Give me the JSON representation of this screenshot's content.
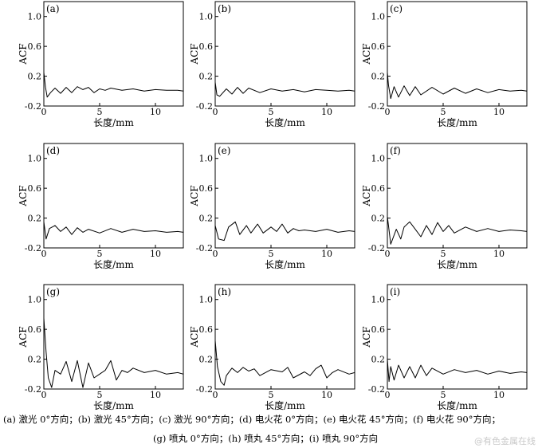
{
  "caption": {
    "line1": "(a) 激光 0°方向；(b) 激光 45°方向；(c) 激光 90°方向；(d) 电火花 0°方向；(e) 电火花 45°方向；(f) 电火花 90°方向；",
    "line2": "(g) 喷丸 0°方向；(h) 喷丸 45°方向；(i) 喷丸 90°方向"
  },
  "watermark": "@有色金属在线",
  "chart_data": [
    {
      "type": "line",
      "panel_label": "(a)",
      "xlabel": "长度/mm",
      "ylabel": "ACF",
      "xlim": [
        0,
        12.5
      ],
      "ylim": [
        -0.2,
        1.2
      ],
      "xticks": [
        0,
        5,
        10
      ],
      "yticks": [
        -0.2,
        0.2,
        0.6,
        1.0
      ],
      "ytick_labels": [
        "-0.2",
        "0.2",
        "0.6",
        "1.0"
      ],
      "x": [
        0,
        0.15,
        0.3,
        0.6,
        1,
        1.5,
        2,
        2.5,
        3,
        3.5,
        4,
        4.5,
        5,
        5.5,
        6,
        7,
        8,
        9,
        10,
        11,
        12,
        12.5
      ],
      "y": [
        0.25,
        0.05,
        -0.08,
        -0.02,
        0.04,
        -0.03,
        0.05,
        -0.02,
        0.06,
        0.02,
        0.05,
        -0.02,
        0.03,
        0.01,
        0.04,
        0.01,
        0.03,
        0.0,
        0.02,
        0.01,
        0.01,
        0.0
      ]
    },
    {
      "type": "line",
      "panel_label": "(b)",
      "xlabel": "长度/mm",
      "ylabel": "ACF",
      "xlim": [
        0,
        12.5
      ],
      "ylim": [
        -0.2,
        1.2
      ],
      "xticks": [
        0,
        5,
        10
      ],
      "yticks": [
        -0.2,
        0.2,
        0.6,
        1.0
      ],
      "ytick_labels": [
        "-0.2",
        "0.2",
        "0.6",
        "1.0"
      ],
      "x": [
        0,
        0.15,
        0.4,
        1,
        1.5,
        2,
        2.5,
        3,
        4,
        5,
        6,
        7,
        8,
        9,
        10,
        11,
        12,
        12.5
      ],
      "y": [
        0.12,
        -0.05,
        -0.07,
        0.03,
        -0.04,
        0.05,
        -0.03,
        0.04,
        -0.02,
        0.03,
        0.0,
        0.02,
        -0.01,
        0.02,
        0.01,
        0.0,
        0.01,
        0.0
      ]
    },
    {
      "type": "line",
      "panel_label": "(c)",
      "xlabel": "长度/mm",
      "ylabel": "ACF",
      "xlim": [
        0,
        12.5
      ],
      "ylim": [
        -0.2,
        1.2
      ],
      "xticks": [
        0,
        5,
        10
      ],
      "yticks": [
        -0.2,
        0.2,
        0.6,
        1.0
      ],
      "ytick_labels": [
        "-0.2",
        "0.2",
        "0.6",
        "1.0"
      ],
      "x": [
        0,
        0.1,
        0.3,
        0.6,
        1,
        1.5,
        2,
        2.5,
        3,
        4,
        5,
        6,
        7,
        8,
        9,
        10,
        11,
        12,
        12.5
      ],
      "y": [
        0.25,
        0.08,
        -0.1,
        0.06,
        -0.08,
        0.07,
        -0.06,
        0.06,
        -0.05,
        0.05,
        -0.04,
        0.04,
        -0.03,
        0.03,
        -0.02,
        0.02,
        0.0,
        0.01,
        0.0
      ]
    },
    {
      "type": "line",
      "panel_label": "(d)",
      "xlabel": "长度/mm",
      "ylabel": "ACF",
      "xlim": [
        0,
        12.5
      ],
      "ylim": [
        -0.2,
        1.2
      ],
      "xticks": [
        0,
        5,
        10
      ],
      "yticks": [
        -0.2,
        0.2,
        0.6,
        1.0
      ],
      "ytick_labels": [
        "-0.2",
        "0.2",
        "0.6",
        "1.0"
      ],
      "x": [
        0,
        0.2,
        0.5,
        1,
        1.5,
        2,
        2.5,
        3,
        3.5,
        4,
        5,
        6,
        7,
        8,
        9,
        10,
        11,
        12,
        12.5
      ],
      "y": [
        0.15,
        -0.08,
        0.06,
        0.1,
        0.02,
        0.08,
        -0.02,
        0.07,
        0.01,
        0.05,
        0.0,
        0.06,
        0.01,
        0.05,
        0.02,
        0.03,
        0.01,
        0.02,
        0.01
      ]
    },
    {
      "type": "line",
      "panel_label": "(e)",
      "xlabel": "长度/mm",
      "ylabel": "ACF",
      "xlim": [
        0,
        12.5
      ],
      "ylim": [
        -0.2,
        1.2
      ],
      "xticks": [
        0,
        5,
        10
      ],
      "yticks": [
        -0.2,
        0.2,
        0.6,
        1.0
      ],
      "ytick_labels": [
        "-0.2",
        "0.2",
        "0.6",
        "1.0"
      ],
      "x": [
        0,
        0.3,
        0.8,
        1.2,
        1.8,
        2.2,
        2.8,
        3.2,
        3.8,
        4.3,
        5,
        5.5,
        6,
        6.5,
        7,
        7.5,
        8,
        9,
        10,
        11,
        12,
        12.5
      ],
      "y": [
        0.1,
        -0.08,
        -0.1,
        0.08,
        0.15,
        -0.02,
        0.1,
        0.0,
        0.12,
        0.0,
        0.08,
        0.02,
        0.12,
        0.0,
        0.06,
        0.03,
        0.04,
        0.02,
        0.05,
        0.01,
        0.03,
        0.02
      ]
    },
    {
      "type": "line",
      "panel_label": "(f)",
      "xlabel": "长度/mm",
      "ylabel": "ACF",
      "xlim": [
        0,
        12.5
      ],
      "ylim": [
        -0.2,
        1.2
      ],
      "xticks": [
        0,
        5,
        10
      ],
      "yticks": [
        -0.2,
        0.2,
        0.6,
        1.0
      ],
      "ytick_labels": [
        "-0.2",
        "0.2",
        "0.6",
        "1.0"
      ],
      "x": [
        0,
        0.1,
        0.3,
        0.8,
        1.2,
        1.5,
        2,
        2.5,
        3,
        3.5,
        4,
        4.5,
        5,
        5.5,
        6,
        7,
        8,
        9,
        10,
        11,
        12,
        12.5
      ],
      "y": [
        0.22,
        0.1,
        -0.15,
        0.05,
        -0.08,
        0.08,
        0.15,
        0.05,
        -0.05,
        0.1,
        -0.02,
        0.14,
        0.02,
        0.1,
        0.0,
        0.08,
        0.02,
        0.06,
        0.02,
        0.04,
        0.03,
        0.02
      ]
    },
    {
      "type": "line",
      "panel_label": "(g)",
      "xlabel": "长度/mm",
      "ylabel": "ACF",
      "xlim": [
        0,
        12.5
      ],
      "ylim": [
        -0.2,
        1.2
      ],
      "xticks": [
        0,
        5,
        10
      ],
      "yticks": [
        -0.2,
        0.2,
        0.6,
        1.0
      ],
      "ytick_labels": [
        "-0.2",
        "0.2",
        "0.6",
        "1.0"
      ],
      "x": [
        0,
        0.2,
        0.4,
        0.7,
        1,
        1.5,
        2,
        2.5,
        3,
        3.5,
        4,
        4.5,
        5,
        5.5,
        6,
        6.5,
        7,
        7.5,
        8,
        9,
        10,
        11,
        12,
        12.5
      ],
      "y": [
        0.75,
        0.3,
        -0.05,
        -0.18,
        0.05,
        0.0,
        0.17,
        -0.1,
        0.18,
        -0.18,
        0.15,
        -0.05,
        0.0,
        0.05,
        0.18,
        -0.08,
        0.05,
        0.02,
        0.08,
        0.02,
        0.05,
        0.0,
        0.02,
        0.0
      ]
    },
    {
      "type": "line",
      "panel_label": "(h)",
      "xlabel": "长度/mm",
      "ylabel": "ACF",
      "xlim": [
        0,
        12.5
      ],
      "ylim": [
        -0.2,
        1.2
      ],
      "xticks": [
        0,
        5,
        10
      ],
      "yticks": [
        -0.2,
        0.2,
        0.6,
        1.0
      ],
      "ytick_labels": [
        "-0.2",
        "0.2",
        "0.6",
        "1.0"
      ],
      "x": [
        0,
        0.2,
        0.5,
        0.8,
        1,
        1.5,
        2,
        2.5,
        3,
        3.5,
        4,
        5,
        6,
        6.5,
        7,
        8,
        8.5,
        9,
        9.5,
        10,
        10.5,
        11,
        12,
        12.5
      ],
      "y": [
        0.45,
        0.1,
        -0.1,
        -0.15,
        -0.02,
        0.08,
        0.02,
        0.09,
        0.04,
        0.07,
        -0.02,
        0.06,
        0.03,
        0.09,
        -0.05,
        0.03,
        -0.02,
        0.07,
        0.12,
        -0.05,
        0.02,
        0.06,
        0.0,
        0.02
      ]
    },
    {
      "type": "line",
      "panel_label": "(i)",
      "xlabel": "长度/mm",
      "ylabel": "ACF",
      "xlim": [
        0,
        12.5
      ],
      "ylim": [
        -0.2,
        1.2
      ],
      "xticks": [
        0,
        5,
        10
      ],
      "yticks": [
        -0.2,
        0.2,
        0.6,
        1.0
      ],
      "ytick_labels": [
        "-0.2",
        "0.2",
        "0.6",
        "1.0"
      ],
      "x": [
        0,
        0.15,
        0.3,
        0.6,
        1,
        1.5,
        2,
        2.5,
        3,
        3.5,
        4,
        5,
        6,
        7,
        8,
        9,
        10,
        11,
        12,
        12.5
      ],
      "y": [
        0.2,
        -0.1,
        0.1,
        -0.08,
        0.12,
        -0.05,
        0.1,
        -0.05,
        0.12,
        -0.02,
        0.08,
        0.0,
        0.06,
        0.02,
        0.05,
        0.0,
        0.04,
        0.01,
        0.03,
        0.02
      ]
    }
  ]
}
